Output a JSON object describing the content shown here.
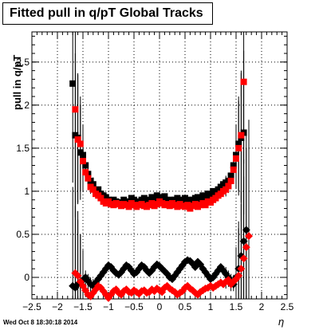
{
  "title": "Fitted pull in q/pT  Global Tracks",
  "ylabel": "pull in q/pT",
  "xlabel": "η",
  "datestamp": "Wed Oct  8 18:30:18 2014",
  "chart_data": {
    "type": "scatter",
    "xlim": [
      -2.5,
      2.5
    ],
    "ylim": [
      -0.25,
      2.85
    ],
    "xticks": [
      "−2.5",
      "−2",
      "−1.5",
      "−1",
      "−0.5",
      "0",
      "0.5",
      "1",
      "1.5",
      "2",
      "2.5"
    ],
    "yticks": [
      "0",
      "0.5",
      "1",
      "1.5",
      "2",
      "2.5"
    ],
    "grid": true,
    "series": [
      {
        "color": "#000000",
        "marker": "square",
        "x": [
          -1.7,
          -1.65,
          -1.6,
          -1.55,
          -1.5,
          -1.45,
          -1.4,
          -1.35,
          -1.3,
          -1.25,
          -1.2,
          -1.15,
          -1.1,
          -1.05,
          -1.0,
          -0.95,
          -0.9,
          -0.85,
          -0.8,
          -0.75,
          -0.7,
          -0.65,
          -0.6,
          -0.55,
          -0.5,
          -0.45,
          -0.4,
          -0.35,
          -0.3,
          -0.25,
          -0.2,
          -0.15,
          -0.1,
          -0.05,
          0.0,
          0.05,
          0.1,
          0.15,
          0.2,
          0.25,
          0.3,
          0.35,
          0.4,
          0.45,
          0.5,
          0.55,
          0.6,
          0.65,
          0.7,
          0.75,
          0.8,
          0.85,
          0.9,
          0.95,
          1.0,
          1.05,
          1.1,
          1.15,
          1.2,
          1.25,
          1.3,
          1.35,
          1.4,
          1.45,
          1.5,
          1.55,
          1.6,
          1.65
        ],
        "y": [
          2.25,
          1.65,
          1.62,
          1.45,
          1.42,
          1.3,
          1.2,
          1.12,
          1.08,
          1.0,
          1.02,
          0.97,
          0.95,
          0.93,
          0.9,
          0.88,
          0.9,
          0.88,
          0.87,
          0.86,
          0.9,
          0.85,
          0.88,
          0.92,
          0.9,
          0.87,
          0.88,
          0.9,
          0.92,
          0.88,
          0.9,
          0.93,
          0.9,
          0.95,
          0.93,
          0.92,
          0.94,
          0.88,
          0.9,
          0.87,
          0.9,
          0.92,
          0.88,
          0.9,
          0.92,
          0.9,
          0.88,
          0.9,
          0.92,
          0.93,
          0.9,
          0.95,
          0.92,
          0.97,
          0.95,
          1.0,
          0.98,
          1.02,
          1.05,
          1.08,
          1.1,
          1.12,
          1.18,
          1.3,
          1.42,
          1.55,
          1.62,
          1.68
        ]
      },
      {
        "color": "#ff0000",
        "marker": "square",
        "x": [
          -1.65,
          -1.6,
          -1.55,
          -1.5,
          -1.45,
          -1.4,
          -1.35,
          -1.3,
          -1.25,
          -1.2,
          -1.15,
          -1.1,
          -1.05,
          -1.0,
          -0.95,
          -0.9,
          -0.85,
          -0.8,
          -0.75,
          -0.7,
          -0.65,
          -0.6,
          -0.55,
          -0.5,
          -0.45,
          -0.4,
          -0.35,
          -0.3,
          -0.25,
          -0.2,
          -0.15,
          -0.1,
          -0.05,
          0.0,
          0.05,
          0.1,
          0.15,
          0.2,
          0.25,
          0.3,
          0.35,
          0.4,
          0.45,
          0.5,
          0.55,
          0.6,
          0.65,
          0.7,
          0.75,
          0.8,
          0.85,
          0.9,
          0.95,
          1.0,
          1.05,
          1.1,
          1.15,
          1.2,
          1.25,
          1.3,
          1.35,
          1.4,
          1.45,
          1.5,
          1.55,
          1.6,
          1.65
        ],
        "y": [
          1.95,
          1.6,
          1.55,
          1.35,
          1.22,
          1.15,
          1.05,
          1.02,
          0.97,
          0.95,
          0.92,
          0.88,
          0.86,
          0.88,
          0.85,
          0.84,
          0.86,
          0.85,
          0.83,
          0.85,
          0.84,
          0.82,
          0.86,
          0.84,
          0.82,
          0.84,
          0.85,
          0.83,
          0.82,
          0.84,
          0.86,
          0.83,
          0.85,
          0.88,
          0.86,
          0.84,
          0.85,
          0.83,
          0.86,
          0.84,
          0.82,
          0.85,
          0.83,
          0.82,
          0.84,
          0.8,
          0.83,
          0.85,
          0.82,
          0.84,
          0.86,
          0.84,
          0.88,
          0.87,
          0.9,
          0.92,
          0.95,
          0.97,
          1.0,
          1.02,
          1.06,
          1.12,
          1.25,
          1.38,
          1.5,
          1.65,
          2.27
        ]
      },
      {
        "color": "#000000",
        "marker": "diamond",
        "x": [
          -1.7,
          -1.65,
          -1.6,
          -1.55,
          -1.5,
          -1.45,
          -1.4,
          -1.35,
          -1.3,
          -1.25,
          -1.2,
          -1.15,
          -1.1,
          -1.05,
          -1.0,
          -0.95,
          -0.9,
          -0.85,
          -0.8,
          -0.75,
          -0.7,
          -0.65,
          -0.6,
          -0.55,
          -0.5,
          -0.45,
          -0.4,
          -0.35,
          -0.3,
          -0.25,
          -0.2,
          -0.15,
          -0.1,
          -0.05,
          0.0,
          0.05,
          0.1,
          0.15,
          0.2,
          0.25,
          0.3,
          0.35,
          0.4,
          0.45,
          0.5,
          0.55,
          0.6,
          0.65,
          0.7,
          0.75,
          0.8,
          0.85,
          0.9,
          0.95,
          1.0,
          1.05,
          1.1,
          1.15,
          1.2,
          1.25,
          1.3,
          1.35,
          1.4,
          1.45,
          1.5,
          1.55,
          1.6,
          1.65,
          1.7
        ],
        "y": [
          -0.1,
          -0.12,
          -0.08,
          -0.05,
          -0.03,
          0.0,
          -0.04,
          -0.08,
          -0.1,
          -0.06,
          -0.02,
          0.02,
          0.06,
          0.1,
          0.14,
          0.12,
          0.08,
          0.05,
          0.03,
          0.06,
          0.1,
          0.14,
          0.12,
          0.08,
          0.04,
          0.06,
          0.1,
          0.14,
          0.12,
          0.08,
          0.05,
          0.08,
          0.12,
          0.15,
          0.13,
          0.1,
          0.07,
          0.04,
          0.0,
          -0.02,
          0.02,
          0.06,
          0.1,
          0.14,
          0.18,
          0.2,
          0.19,
          0.16,
          0.12,
          0.18,
          0.15,
          0.1,
          0.06,
          0.02,
          -0.02,
          0.0,
          0.04,
          0.08,
          0.12,
          0.08,
          0.04,
          0.0,
          -0.04,
          -0.08,
          0.0,
          0.1,
          0.25,
          0.42,
          0.55
        ]
      },
      {
        "color": "#ff0000",
        "marker": "diamond",
        "x": [
          -1.65,
          -1.6,
          -1.55,
          -1.5,
          -1.45,
          -1.4,
          -1.35,
          -1.3,
          -1.25,
          -1.2,
          -1.15,
          -1.1,
          -1.05,
          -1.0,
          -0.95,
          -0.9,
          -0.85,
          -0.8,
          -0.75,
          -0.7,
          -0.65,
          -0.6,
          -0.55,
          -0.5,
          -0.45,
          -0.4,
          -0.35,
          -0.3,
          -0.25,
          -0.2,
          -0.15,
          -0.1,
          -0.05,
          0.0,
          0.05,
          0.1,
          0.15,
          0.2,
          0.25,
          0.3,
          0.35,
          0.4,
          0.45,
          0.5,
          0.55,
          0.6,
          0.65,
          0.7,
          0.75,
          0.8,
          0.85,
          0.9,
          0.95,
          1.0,
          1.05,
          1.1,
          1.15,
          1.2,
          1.25,
          1.3,
          1.35,
          1.4,
          1.45,
          1.5,
          1.55,
          1.6,
          1.65,
          1.7,
          1.75
        ],
        "y": [
          0.05,
          0.02,
          -0.05,
          -0.1,
          -0.15,
          -0.2,
          -0.22,
          -0.18,
          -0.14,
          -0.1,
          -0.12,
          -0.16,
          -0.2,
          -0.24,
          -0.2,
          -0.16,
          -0.14,
          -0.18,
          -0.2,
          -0.16,
          -0.14,
          -0.17,
          -0.18,
          -0.15,
          -0.17,
          -0.19,
          -0.16,
          -0.15,
          -0.18,
          -0.17,
          -0.14,
          -0.16,
          -0.13,
          -0.15,
          -0.17,
          -0.12,
          -0.1,
          -0.13,
          -0.15,
          -0.17,
          -0.2,
          -0.18,
          -0.16,
          -0.12,
          -0.1,
          -0.13,
          -0.15,
          -0.18,
          -0.2,
          -0.17,
          -0.15,
          -0.13,
          -0.12,
          -0.1,
          -0.12,
          -0.1,
          -0.08,
          -0.06,
          -0.08,
          -0.05,
          -0.03,
          -0.08,
          -0.05,
          -0.02,
          0.02,
          0.1,
          0.22,
          0.35,
          0.48
        ]
      }
    ]
  }
}
